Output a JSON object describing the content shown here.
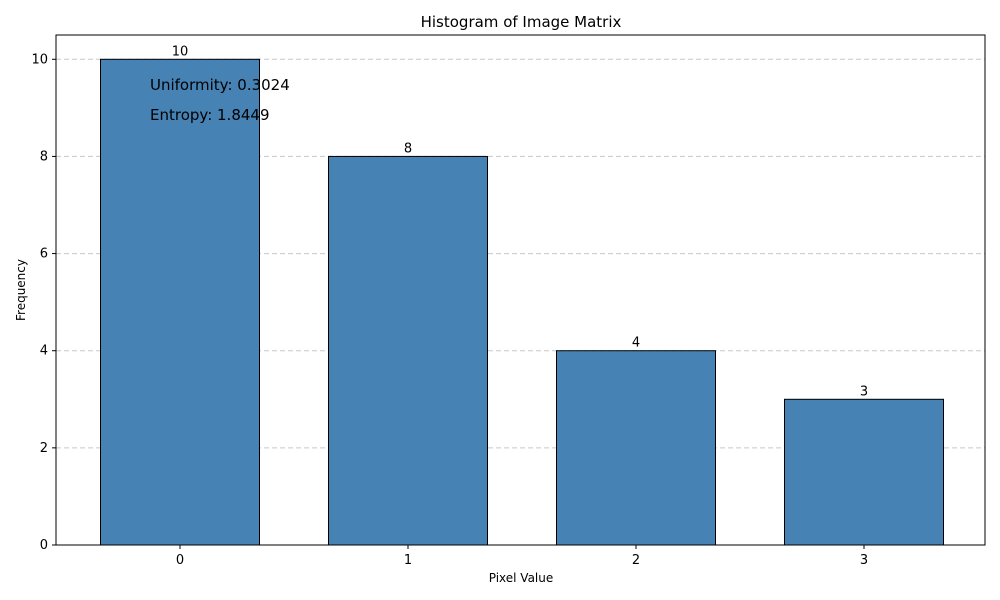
{
  "chart_data": {
    "type": "bar",
    "title": "Histogram of Image Matrix",
    "xlabel": "Pixel Value",
    "ylabel": "Frequency",
    "categories": [
      "0",
      "1",
      "2",
      "3"
    ],
    "values": [
      10,
      8,
      4,
      3
    ],
    "data_labels": [
      "10",
      "8",
      "4",
      "3"
    ],
    "ylim": [
      0,
      10.5
    ],
    "yticks": [
      0,
      2,
      4,
      6,
      8,
      10
    ],
    "grid": "y-dashed",
    "legend": "none",
    "annotations": [
      "Uniformity: 0.3024",
      "Entropy: 1.8449"
    ],
    "colors": {
      "bar_fill": "#4682b4",
      "bar_edge": "#000000",
      "grid": "#c8c8c8",
      "axis": "#000000"
    }
  }
}
